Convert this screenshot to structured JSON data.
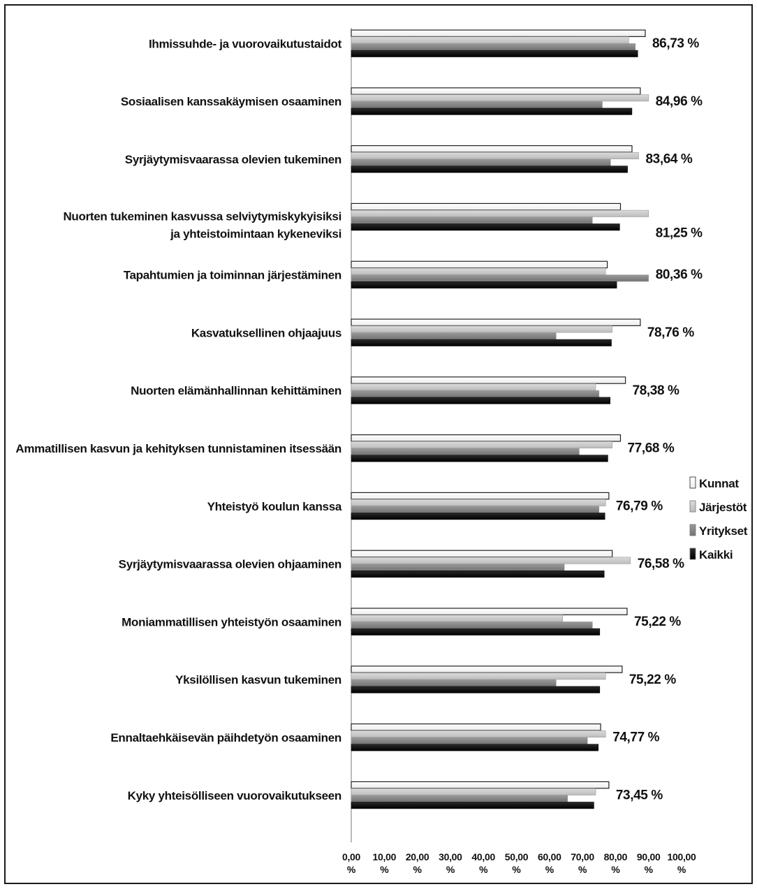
{
  "chart_data": {
    "type": "bar",
    "orientation": "horizontal",
    "categories": [
      [
        "Ihmissuhde- ja vuorovaikutustaidot"
      ],
      [
        "Sosiaalisen kanssakäymisen osaaminen"
      ],
      [
        "Syrjäytymisvaarassa olevien tukeminen"
      ],
      [
        "Nuorten tukeminen kasvussa selviytymiskykyisiksi",
        "ja yhteistoimintaan kykeneviksi"
      ],
      [
        "Tapahtumien ja toiminnan järjestäminen"
      ],
      [
        "Kasvatuksellinen ohjaajuus"
      ],
      [
        "Nuorten elämänhallinnan kehittäminen"
      ],
      [
        "Ammatillisen kasvun ja kehityksen tunnistaminen itsessään"
      ],
      [
        "Yhteistyö koulun kanssa"
      ],
      [
        "Syrjäytymisvaarassa olevien ohjaaminen"
      ],
      [
        "Moniammatillisen yhteistyön osaaminen"
      ],
      [
        "Yksilöllisen kasvun tukeminen"
      ],
      [
        "Ennaltaehkäisevän päihdetyön osaaminen"
      ],
      [
        "Kyky yhteisölliseen vuorovaikutukseen"
      ]
    ],
    "series": [
      {
        "name": "Kunnat",
        "color": "#ffffff",
        "values": [
          89,
          87.5,
          85,
          81.5,
          77.5,
          87.5,
          83,
          81.5,
          78,
          79,
          83.5,
          82,
          75.5,
          78
        ]
      },
      {
        "name": "Järjestöt",
        "color": "#c8c8c8",
        "values": [
          84,
          90,
          87,
          90,
          77,
          79,
          74,
          79,
          77,
          84.5,
          64,
          77,
          77,
          74
        ]
      },
      {
        "name": "Yritykset",
        "color": "#858585",
        "values": [
          86,
          76,
          78.5,
          73,
          90,
          62,
          75,
          69,
          75,
          64.5,
          73,
          62,
          71.5,
          65.5
        ]
      },
      {
        "name": "Kaikki",
        "color": "#0d0d0d",
        "values": [
          86.73,
          84.96,
          83.64,
          81.25,
          80.36,
          78.76,
          78.38,
          77.68,
          76.79,
          76.58,
          75.22,
          75.22,
          74.77,
          73.45
        ]
      }
    ],
    "data_labels": [
      "86,73 %",
      "84,96 %",
      "83,64 %",
      "81,25 %",
      "80,36 %",
      "78,76 %",
      "78,38 %",
      "77,68 %",
      "76,79 %",
      "76,58 %",
      "75,22 %",
      "75,22 %",
      "74,77 %",
      "73,45 %"
    ],
    "xlim": [
      0,
      100
    ],
    "xticks": [
      [
        "0,00",
        "%"
      ],
      [
        "10,00",
        "%"
      ],
      [
        "20,00",
        "%"
      ],
      [
        "30,00",
        "%"
      ],
      [
        "40,00",
        "%"
      ],
      [
        "50,00",
        "%"
      ],
      [
        "60,00",
        "%"
      ],
      [
        "70,00",
        "%"
      ],
      [
        "80,00",
        "%"
      ],
      [
        "90,00",
        "%"
      ],
      [
        "100,00",
        "%"
      ]
    ],
    "title": "",
    "xlabel": "",
    "ylabel": "",
    "grid": false,
    "legend": "right"
  }
}
